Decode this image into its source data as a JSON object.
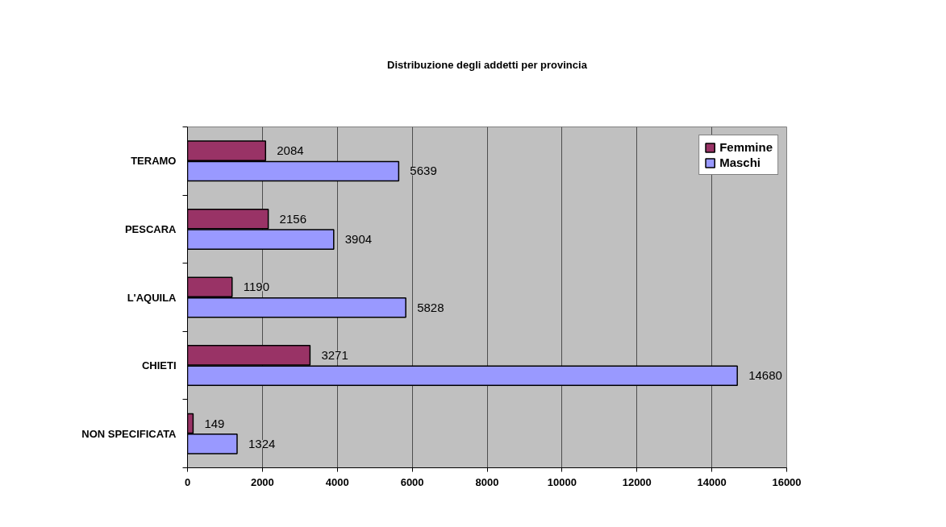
{
  "chart_data": {
    "type": "bar",
    "orientation": "horizontal",
    "title": "Distribuzione degli addetti per provincia",
    "categories": [
      "TERAMO",
      "PESCARA",
      "L'AQUILA",
      "CHIETI",
      "NON SPECIFICATA"
    ],
    "series": [
      {
        "name": "Femmine",
        "color": "#993366",
        "values": [
          2084,
          2156,
          1190,
          3271,
          149
        ]
      },
      {
        "name": "Maschi",
        "color": "#9999ff",
        "values": [
          5639,
          3904,
          5828,
          14680,
          1324
        ]
      }
    ],
    "xlim": [
      0,
      16000
    ],
    "xticks": [
      0,
      2000,
      4000,
      6000,
      8000,
      10000,
      12000,
      14000,
      16000
    ],
    "grid": "x",
    "legend": "top right",
    "data_labels": true
  }
}
